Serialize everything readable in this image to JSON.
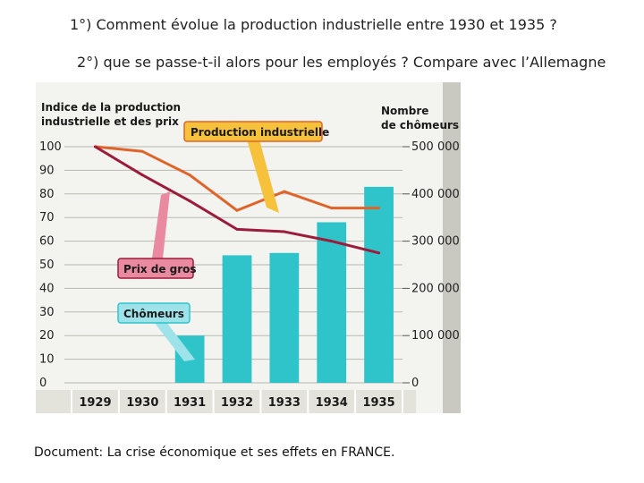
{
  "questions": {
    "q1": "1°) Comment évolue la production industrielle entre 1930 et 1935 ?",
    "q2": "2°) que se passe-t-il alors pour les employés ? Compare avec l’Allemagne"
  },
  "caption": "Document: La crise économique et ses effets en FRANCE.",
  "colors": {
    "production": "#e0642a",
    "prix": "#9c1c3b",
    "bars": "#2ec4c9",
    "label_production_bg": "#f6c23c",
    "label_prix_bg": "#e98aa0",
    "label_chomeurs_bg": "#9fe3ea",
    "chart_bg": "#f3f3f0",
    "xaxis_bg": "#e3e3dc"
  },
  "chart_data": {
    "type": "bar+line",
    "categories": [
      "1929",
      "1930",
      "1931",
      "1932",
      "1933",
      "1934",
      "1935"
    ],
    "left_axis": {
      "title_line1": "Indice de la production",
      "title_line2": "industrielle et des prix",
      "ticks": [
        0,
        10,
        20,
        30,
        40,
        50,
        60,
        70,
        80,
        90,
        100
      ],
      "tick_labels": [
        "0",
        "10",
        "20",
        "30",
        "40",
        "50",
        "60",
        "70",
        "80",
        "90",
        "100"
      ],
      "range": [
        0,
        100
      ]
    },
    "right_axis": {
      "title_line1": "Nombre",
      "title_line2": "de chômeurs",
      "ticks": [
        0,
        100000,
        200000,
        300000,
        400000,
        500000
      ],
      "tick_labels": [
        "0",
        "100 000",
        "200 000",
        "300 000",
        "400 000",
        "500 000"
      ],
      "range": [
        0,
        500000
      ]
    },
    "bars": {
      "name": "Chômeurs",
      "values": [
        0,
        0,
        100000,
        270000,
        275000,
        340000,
        415000
      ]
    },
    "lines": [
      {
        "name": "Production industrielle",
        "values": [
          100,
          98,
          88,
          73,
          81,
          74,
          74
        ]
      },
      {
        "name": "Prix de gros",
        "values": [
          100,
          88,
          77,
          65,
          64,
          60,
          55
        ]
      }
    ],
    "grid": true
  }
}
